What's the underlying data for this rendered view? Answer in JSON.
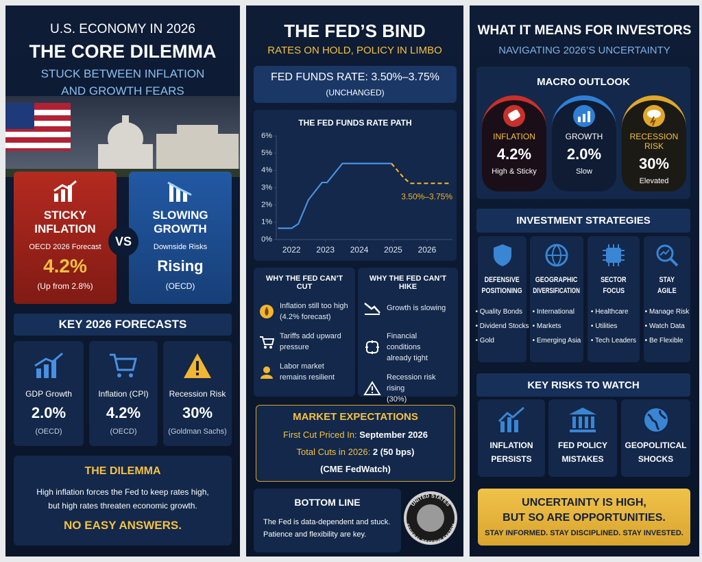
{
  "panel1": {
    "kicker": "U.S. ECONOMY IN 2026",
    "title": "THE CORE DILEMMA",
    "subtitle": [
      "STUCK BETWEEN INFLATION",
      "AND GROWTH FEARS"
    ],
    "inflation_card": {
      "title": [
        "STICKY",
        "INFLATION"
      ],
      "note": "OECD 2026 Forecast",
      "value": "4.2%",
      "sub": "(Up from 2.8%)"
    },
    "vs": "VS",
    "growth_card": {
      "title": [
        "SLOWING",
        "GROWTH"
      ],
      "note": "Downside Risks",
      "value": "Rising",
      "sub": "(OECD)"
    },
    "forecasts": {
      "heading": "KEY 2026 FORECASTS",
      "items": [
        {
          "label": "GDP Growth",
          "value": "2.0%",
          "source": "(OECD)"
        },
        {
          "label": "Inflation (CPI)",
          "value": "4.2%",
          "source": "(OECD)"
        },
        {
          "label": "Recession Risk",
          "value": "30%",
          "source": "(Goldman Sachs)"
        }
      ]
    },
    "dilemma": {
      "heading": "THE DILEMMA",
      "text": [
        "High inflation forces the Fed to keep rates high,",
        "but high rates threaten economic growth."
      ],
      "punch": "NO EASY ANSWERS."
    }
  },
  "panel2": {
    "title": "THE FED’S BIND",
    "subtitle": "RATES ON HOLD, POLICY IN LIMBO",
    "rate": {
      "label": "FED FUNDS RATE: 3.50%–3.75%",
      "status": "(UNCHANGED)"
    },
    "cut": {
      "heading": "WHY THE FED CAN’T CUT",
      "items": [
        [
          "Inflation still too high",
          "(4.2% forecast)"
        ],
        [
          "Tariffs add upward",
          "pressure"
        ],
        [
          "Labor market",
          "remains resilient"
        ]
      ]
    },
    "hike": {
      "heading": "WHY THE FED CAN’T HIKE",
      "items": [
        [
          "Growth is slowing"
        ],
        [
          "Financial conditions",
          "already tight"
        ],
        [
          "Recession risk rising",
          "(30%)"
        ]
      ]
    },
    "market": {
      "heading": "MARKET EXPECTATIONS",
      "rows": [
        {
          "label": "First Cut Priced In:",
          "value": "September 2026"
        },
        {
          "label": "Total Cuts in 2026:",
          "value": "2 (50 bps)"
        }
      ],
      "source": "(CME FedWatch)"
    },
    "bottom": {
      "heading": "BOTTOM LINE",
      "text": [
        "The Fed is data-dependent and stuck.",
        "Patience and flexibility are key."
      ]
    },
    "seal": {
      "top": "UNITED STATES",
      "bottom": "FEDERAL RESERVE SYSTEM"
    }
  },
  "chart_data": {
    "type": "line",
    "title": "THE FED FUNDS RATE PATH",
    "x": [
      2021.6,
      2022.0,
      2022.2,
      2022.5,
      2022.9,
      2023.05,
      2023.5,
      2024.0,
      2024.95,
      2025.3,
      2025.5,
      2026.7
    ],
    "series": [
      {
        "color": "#4a90e2",
        "dashed": false,
        "values": [
          0.65,
          0.65,
          0.9,
          2.3,
          3.3,
          3.3,
          4.4,
          4.4,
          4.4,
          null,
          null,
          null
        ]
      },
      {
        "color": "#f0b429",
        "dashed": true,
        "values": [
          null,
          null,
          null,
          null,
          null,
          null,
          null,
          null,
          4.4,
          3.6,
          3.25,
          3.25
        ]
      }
    ],
    "xlim": [
      2021.55,
      2026.75
    ],
    "xticks": [
      2022,
      2023,
      2024,
      2025,
      2026
    ],
    "ylim": [
      0,
      6
    ],
    "yticks": [
      {
        "value": 0,
        "label": "0%"
      },
      {
        "value": 1,
        "label": "1%"
      },
      {
        "value": 2,
        "label": "2%"
      },
      {
        "value": 3,
        "label": "3%"
      },
      {
        "value": 4,
        "label": "4%"
      },
      {
        "value": 5,
        "label": "5%"
      },
      {
        "value": 6,
        "label": "6%"
      }
    ],
    "grid": false,
    "annotation": "3.50%–3.75%"
  },
  "panel3": {
    "title": "WHAT IT MEANS FOR INVESTORS",
    "subtitle": "NAVIGATING 2026’S UNCERTAINTY",
    "macro": {
      "heading": "MACRO OUTLOOK",
      "gauges": [
        {
          "label": "INFLATION",
          "value": "4.2%",
          "note": "High & Sticky"
        },
        {
          "label": "GROWTH",
          "value": "2.0%",
          "note": "Slow"
        },
        {
          "label": "RECESSION RISK",
          "value": "30%",
          "note": "Elevated"
        }
      ]
    },
    "strategies": {
      "heading": "INVESTMENT STRATEGIES",
      "items": [
        {
          "title": [
            "DEFENSIVE",
            "POSITIONING"
          ],
          "bullets": [
            "• Quality Bonds",
            "• Dividend Stocks",
            "• Gold"
          ]
        },
        {
          "title": [
            "GEOGRAPHIC",
            "DIVERSIFICATION"
          ],
          "bullets": [
            "• International",
            "• Markets",
            "• Emerging Asia"
          ]
        },
        {
          "title": [
            "SECTOR",
            "FOCUS"
          ],
          "bullets": [
            "• Healthcare",
            "• Utilities",
            "• Tech Leaders"
          ]
        },
        {
          "title": [
            "STAY",
            "AGILE"
          ],
          "bullets": [
            "• Manage Risk",
            "• Watch Data",
            "• Be Flexible"
          ]
        }
      ]
    },
    "risks": {
      "heading": "KEY RISKS TO WATCH",
      "items": [
        [
          "INFLATION",
          "PERSISTS"
        ],
        [
          "FED POLICY",
          "MISTAKES"
        ],
        [
          "GEOPOLITICAL",
          "SHOCKS"
        ]
      ]
    },
    "banner": {
      "lines": [
        "UNCERTAINTY IS HIGH,",
        "BUT SO ARE OPPORTUNITIES."
      ],
      "tagline": "STAY INFORMED. STAY DISCIPLINED. STAY INVESTED."
    }
  }
}
